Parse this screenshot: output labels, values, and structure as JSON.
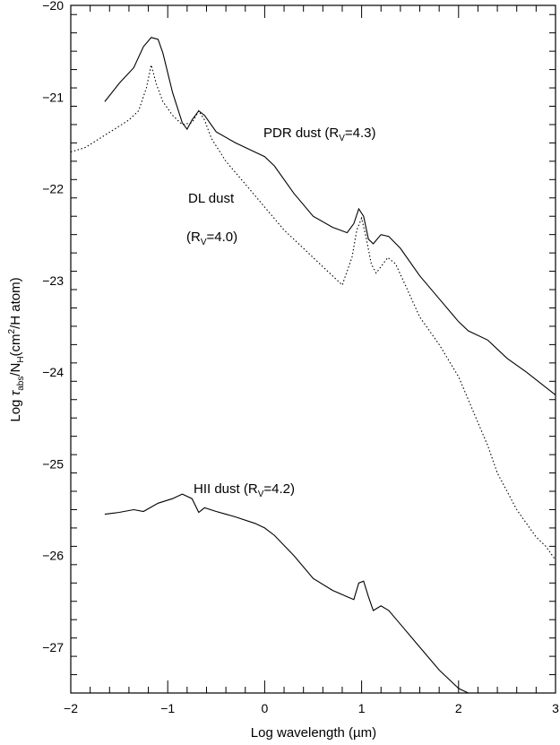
{
  "chart_data": {
    "type": "line",
    "xlabel": "Log wavelength (µm)",
    "ylabel": {
      "pre": "Log ",
      "tau": "τ",
      "tau_sub": "abs",
      "mid": "/N",
      "n_sub": "H",
      "post1": "(cm",
      "sup": "2",
      "post2": "/H atom)"
    },
    "xlim": [
      -2,
      3
    ],
    "ylim": [
      -27.5,
      -20
    ],
    "x_ticks": [
      -2,
      -1,
      0,
      1,
      2,
      3
    ],
    "y_ticks": [
      -27,
      -26,
      -25,
      -24,
      -23,
      -22,
      -21,
      -20
    ],
    "x_tick_labels": [
      "−2",
      "−1",
      "0",
      "1",
      "2",
      "3"
    ],
    "y_tick_labels": [
      "−27",
      "−26",
      "−25",
      "−24",
      "−23",
      "−22",
      "−21",
      "−20"
    ],
    "grid": false,
    "series": [
      {
        "key": "pdr",
        "style": "solid",
        "x": [
          -1.65,
          -1.5,
          -1.35,
          -1.25,
          -1.17,
          -1.1,
          -1.05,
          -0.95,
          -0.85,
          -0.8,
          -0.75,
          -0.68,
          -0.62,
          -0.5,
          -0.3,
          -0.1,
          0.0,
          0.1,
          0.3,
          0.5,
          0.7,
          0.85,
          0.92,
          0.97,
          1.02,
          1.07,
          1.12,
          1.2,
          1.28,
          1.4,
          1.6,
          1.8,
          2.0,
          2.1,
          2.3,
          2.5,
          2.7,
          3.0
        ],
        "y": [
          -21.05,
          -20.85,
          -20.68,
          -20.45,
          -20.35,
          -20.37,
          -20.52,
          -20.95,
          -21.28,
          -21.35,
          -21.25,
          -21.15,
          -21.2,
          -21.38,
          -21.5,
          -21.6,
          -21.65,
          -21.75,
          -22.05,
          -22.3,
          -22.42,
          -22.48,
          -22.38,
          -22.22,
          -22.3,
          -22.55,
          -22.6,
          -22.5,
          -22.52,
          -22.65,
          -22.95,
          -23.2,
          -23.45,
          -23.55,
          -23.65,
          -23.85,
          -24.0,
          -24.25
        ]
      },
      {
        "key": "dl",
        "style": "dotted",
        "x": [
          -2.0,
          -1.85,
          -1.7,
          -1.55,
          -1.4,
          -1.3,
          -1.22,
          -1.17,
          -1.12,
          -1.05,
          -0.95,
          -0.85,
          -0.75,
          -0.68,
          -0.62,
          -0.55,
          -0.4,
          -0.2,
          0.0,
          0.2,
          0.4,
          0.6,
          0.8,
          0.9,
          0.95,
          1.0,
          1.05,
          1.1,
          1.15,
          1.2,
          1.27,
          1.35,
          1.45,
          1.6,
          1.8,
          2.0,
          2.1,
          2.2,
          2.3,
          2.4,
          2.5,
          2.6,
          2.7,
          2.8,
          2.9,
          3.0
        ],
        "y": [
          -21.6,
          -21.55,
          -21.45,
          -21.35,
          -21.25,
          -21.15,
          -20.9,
          -20.65,
          -20.85,
          -21.05,
          -21.2,
          -21.3,
          -21.28,
          -21.15,
          -21.25,
          -21.45,
          -21.7,
          -21.95,
          -22.2,
          -22.45,
          -22.65,
          -22.85,
          -23.05,
          -22.75,
          -22.45,
          -22.32,
          -22.55,
          -22.82,
          -22.92,
          -22.85,
          -22.75,
          -22.82,
          -23.05,
          -23.4,
          -23.7,
          -24.05,
          -24.3,
          -24.55,
          -24.8,
          -25.1,
          -25.3,
          -25.5,
          -25.65,
          -25.8,
          -25.9,
          -26.05
        ]
      },
      {
        "key": "hii",
        "style": "solid",
        "x": [
          -1.65,
          -1.5,
          -1.35,
          -1.25,
          -1.1,
          -0.95,
          -0.85,
          -0.75,
          -0.68,
          -0.62,
          -0.5,
          -0.3,
          -0.1,
          0.0,
          0.1,
          0.3,
          0.5,
          0.7,
          0.85,
          0.92,
          0.97,
          1.02,
          1.07,
          1.12,
          1.2,
          1.28,
          1.4,
          1.6,
          1.8,
          2.0,
          2.1,
          2.2
        ],
        "y": [
          -25.55,
          -25.53,
          -25.5,
          -25.52,
          -25.43,
          -25.38,
          -25.33,
          -25.38,
          -25.53,
          -25.48,
          -25.52,
          -25.58,
          -25.65,
          -25.7,
          -25.78,
          -26.0,
          -26.25,
          -26.38,
          -26.45,
          -26.48,
          -26.3,
          -26.28,
          -26.45,
          -26.6,
          -26.55,
          -26.6,
          -26.75,
          -27.0,
          -27.25,
          -27.45,
          -27.5,
          -27.5
        ]
      }
    ],
    "annotations": {
      "pdr": {
        "pre": "PDR dust (R",
        "sub": "V",
        "post": "=4.3)"
      },
      "dl1": "DL dust",
      "dl2": {
        "pre": "(R",
        "sub": "V",
        "post": "=4.0)"
      },
      "hii": {
        "pre": "HII dust (R",
        "sub": "V",
        "post": "=4.2)"
      }
    }
  }
}
